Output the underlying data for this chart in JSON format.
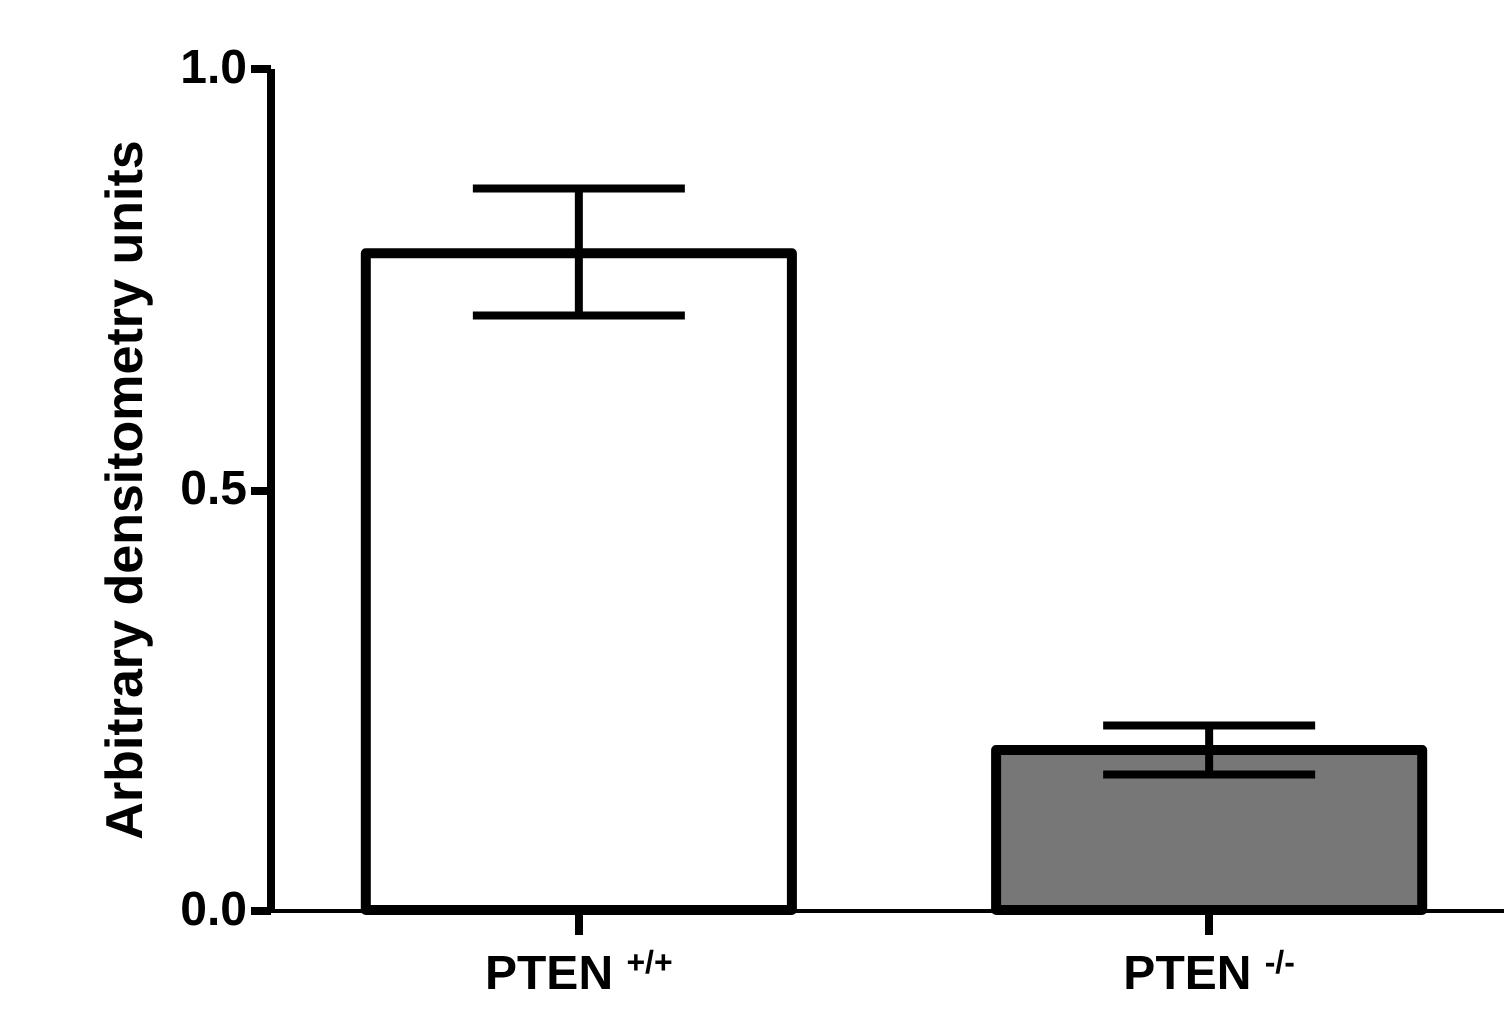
{
  "chart_data": {
    "type": "bar",
    "ylabel": "Arbitrary densitometry units",
    "categories": [
      "PTEN $^{+/+}$",
      "PTEN $^{-/-}$"
    ],
    "values": [
      0.78,
      0.19
    ],
    "errors": [
      [
        0.706,
        0.857
      ],
      [
        0.161,
        0.219
      ]
    ],
    "colors": [
      "#ffffff",
      "#777777"
    ],
    "ylim": [
      0,
      1
    ],
    "yticks": [
      {
        "value": 0,
        "label": "0.0"
      },
      0.5,
      {
        "value": 1,
        "label": "1.0"
      }
    ],
    "grid": false
  }
}
